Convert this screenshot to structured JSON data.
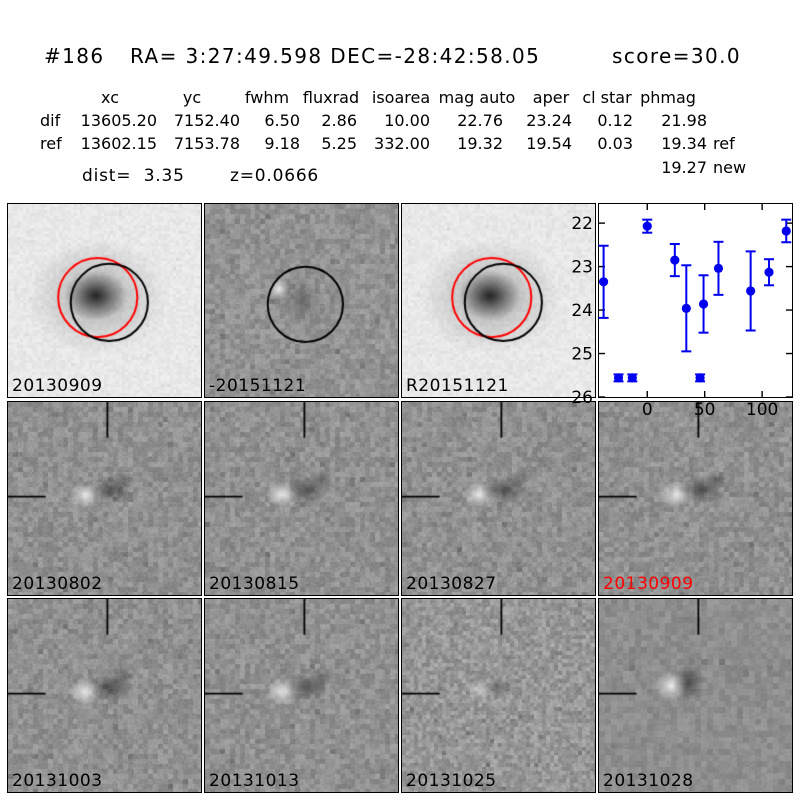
{
  "header": {
    "id": "#186",
    "coords": "RA= 3:27:49.598 DEC=-28:42:58.05",
    "score": "score=30.0"
  },
  "table": {
    "columns": [
      "",
      "xc",
      "yc",
      "fwhm",
      "fluxrad",
      "isoarea",
      "mag auto",
      "aper",
      "cl star",
      "phmag",
      ""
    ],
    "rows": [
      {
        "cells": [
          "dif",
          "13605.20",
          "7152.40",
          "6.50",
          "2.86",
          "10.00",
          "22.76",
          "23.24",
          "0.12",
          "21.98",
          ""
        ]
      },
      {
        "cells": [
          "ref",
          "13602.15",
          "7153.78",
          "9.18",
          "5.25",
          "332.00",
          "19.32",
          "19.54",
          "0.03",
          "19.34",
          "ref"
        ]
      },
      {
        "cells": [
          "",
          "",
          "",
          "",
          "",
          "",
          "",
          "",
          "",
          "19.27",
          "new"
        ]
      }
    ],
    "dist": "dist=  3.35",
    "z": "z=0.0666"
  },
  "stamps": {
    "row1": [
      {
        "label": "20130909",
        "color": "#000000",
        "variant": "template",
        "circles": [
          "red",
          "black"
        ],
        "crosshair": false
      },
      {
        "label": "-20151121",
        "color": "#000000",
        "variant": "diff_circle",
        "circles": [
          "black"
        ],
        "crosshair": false
      },
      {
        "label": "R20151121",
        "color": "#000000",
        "variant": "template",
        "circles": [
          "red",
          "black"
        ],
        "crosshair": false
      }
    ],
    "row2": [
      {
        "label": "20130802",
        "color": "#000000",
        "variant": "diff",
        "circles": [],
        "crosshair": true
      },
      {
        "label": "20130815",
        "color": "#000000",
        "variant": "diff",
        "circles": [],
        "crosshair": true
      },
      {
        "label": "20130827",
        "color": "#000000",
        "variant": "diff",
        "circles": [],
        "crosshair": true
      },
      {
        "label": "20130909",
        "color": "#ff0000",
        "variant": "diff",
        "circles": [],
        "crosshair": true
      }
    ],
    "row3": [
      {
        "label": "20131003",
        "color": "#000000",
        "variant": "diff",
        "circles": [],
        "crosshair": true
      },
      {
        "label": "20131013",
        "color": "#000000",
        "variant": "diff",
        "circles": [],
        "crosshair": true
      },
      {
        "label": "20131025",
        "color": "#000000",
        "variant": "diff_fine",
        "circles": [],
        "crosshair": true
      },
      {
        "label": "20131028",
        "color": "#000000",
        "variant": "diff_smooth",
        "circles": [],
        "crosshair": true
      }
    ]
  },
  "chart_data": {
    "type": "scatter",
    "title": "",
    "xlabel": "",
    "ylabel": "",
    "xlim": [
      -42,
      126
    ],
    "ylim": [
      26.0,
      21.56
    ],
    "y_inverted": true,
    "grid": false,
    "legend": "none",
    "xticks": [
      0,
      50,
      100
    ],
    "yticks": [
      22,
      23,
      24,
      25,
      26
    ],
    "marker_color": "#0000ee",
    "series": [
      {
        "name": "detections",
        "points": [
          {
            "x": -38,
            "mag": 23.35,
            "err": 0.83
          },
          {
            "x": 0,
            "mag": 22.07,
            "err": 0.15
          },
          {
            "x": 24,
            "mag": 22.85,
            "err": 0.37
          },
          {
            "x": 34,
            "mag": 23.96,
            "err": 0.99
          },
          {
            "x": 49,
            "mag": 23.86,
            "err": 0.66
          },
          {
            "x": 62,
            "mag": 23.04,
            "err": 0.61
          },
          {
            "x": 90,
            "mag": 23.56,
            "err": 0.91
          },
          {
            "x": 106,
            "mag": 23.13,
            "err": 0.3
          },
          {
            "x": 121,
            "mag": 22.18,
            "err": 0.26
          }
        ]
      },
      {
        "name": "upper-limits",
        "points": [
          {
            "x": -25,
            "mag": 25.56,
            "err": 0.08
          },
          {
            "x": -13,
            "mag": 25.56,
            "err": 0.08
          },
          {
            "x": 46,
            "mag": 25.56,
            "err": 0.08
          }
        ]
      }
    ]
  }
}
